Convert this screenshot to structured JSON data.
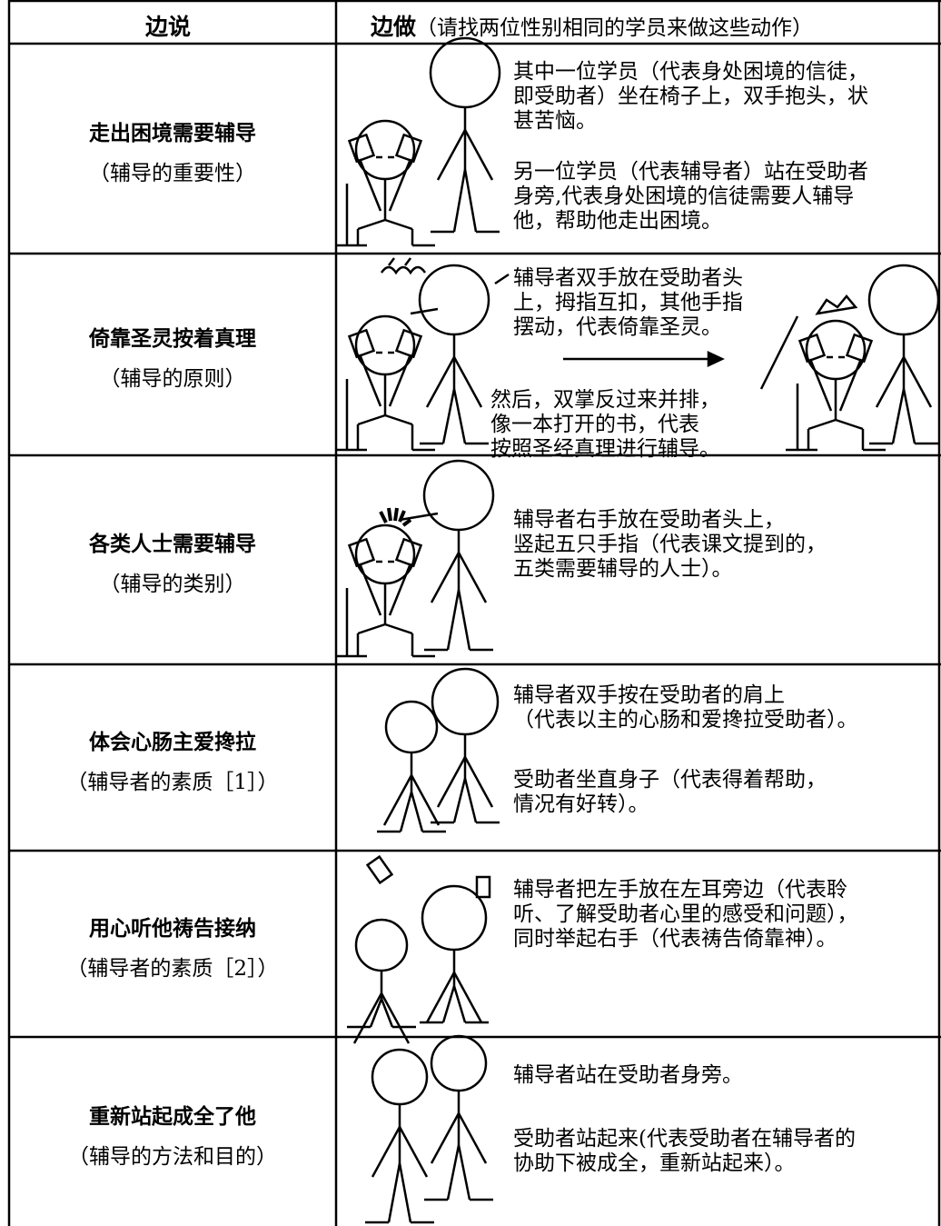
{
  "header": {
    "col1": "边说",
    "col2_title": "边做",
    "col2_note": "（请找两位性别相同的学员来做这些动作）"
  },
  "rows": [
    {
      "title": "走出困境需要辅导",
      "subtitle": "（辅导的重要性）",
      "paragraphs": [
        [
          "其中一位学员（代表身处困境的信徒，",
          "即受助者）坐在椅子上，双手抱头，状",
          "甚苦恼。"
        ],
        [
          "另一位学员（代表辅导者）站在受助者",
          "身旁,代表身处困境的信徒需要人辅导",
          "他，帮助他走出困境。"
        ]
      ]
    },
    {
      "title": "倚靠圣灵按着真理",
      "subtitle": "（辅导的原则）",
      "paragraphs": [
        [
          "辅导者双手放在受助者头",
          "上，拇指互扣，其他手指",
          "摆动，代表倚靠圣灵。"
        ],
        [
          "然后，双掌反过来并排，",
          "像一本打开的书，代表",
          "按照圣经真理进行辅导。"
        ]
      ]
    },
    {
      "title": "各类人士需要辅导",
      "subtitle": "（辅导的类别）",
      "paragraphs": [
        [
          "辅导者右手放在受助者头上，",
          "竖起五只手指（代表课文提到的，",
          "五类需要辅导的人士）。"
        ]
      ]
    },
    {
      "title": "体会心肠主爱搀拉",
      "subtitle": "（辅导者的素质［1］）",
      "paragraphs": [
        [
          "辅导者双手按在受助者的肩上",
          "（代表以主的心肠和爱搀拉受助者）。"
        ],
        [
          "受助者坐直身子（代表得着帮助，",
          "情况有好转）。"
        ]
      ]
    },
    {
      "title": "用心听他祷告接纳",
      "subtitle": "（辅导者的素质［2］）",
      "paragraphs": [
        [
          "辅导者把左手放在左耳旁边（代表聆",
          "听、了解受助者心里的感受和问题），",
          "同时举起右手（代表祷告倚靠神）。"
        ]
      ]
    },
    {
      "title": "重新站起成全了他",
      "subtitle": "（辅导的方法和目的）",
      "paragraphs": [
        [
          "辅导者站在受助者身旁。"
        ],
        [
          "受助者站起来(代表受助者在辅导者的",
          "协助下被成全，重新站起来）。"
        ]
      ]
    }
  ]
}
